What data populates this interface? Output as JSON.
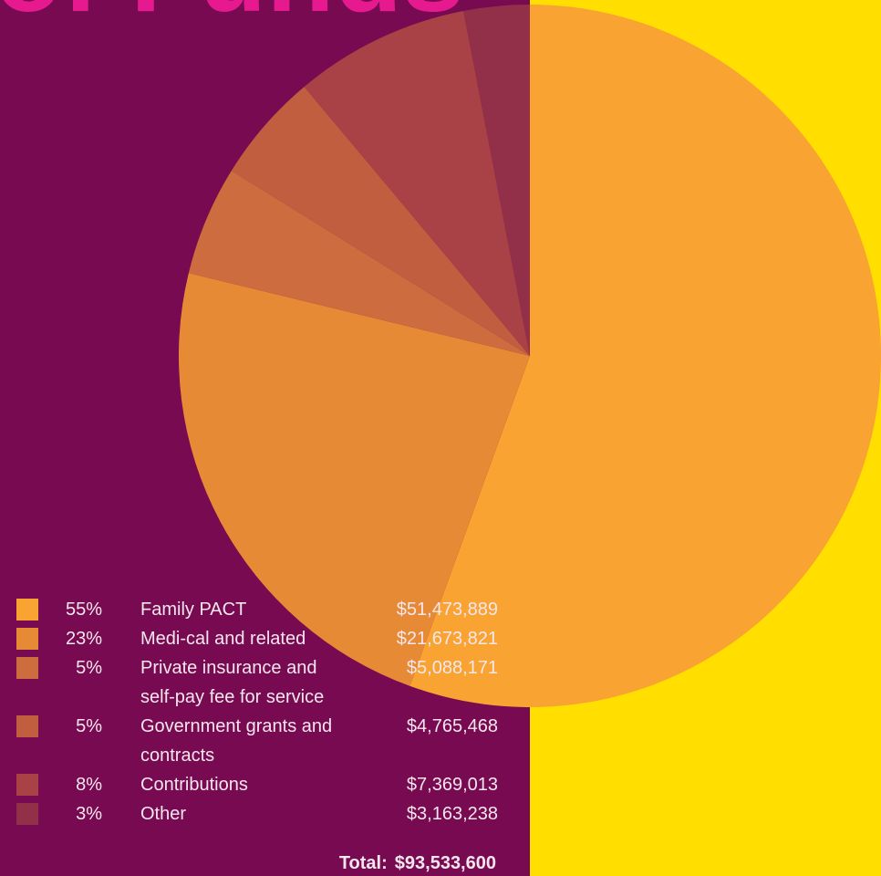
{
  "chart_data": {
    "type": "pie",
    "title": "of Funds",
    "categories": [
      "Family PACT",
      "Medi-cal and related",
      "Private insurance and self-pay fee for service",
      "Government grants and contracts",
      "Contributions",
      "Other"
    ],
    "values": [
      55,
      23,
      5,
      5,
      8,
      3
    ],
    "value_labels": [
      "55%",
      "23%",
      "5%",
      "5%",
      "8%",
      "3%"
    ],
    "amounts": [
      "$51,473,889",
      "$21,673,821",
      "$5,088,171",
      "$4,765,468",
      "$7,369,013",
      "$3,163,238"
    ],
    "colors": [
      "#f8a332",
      "#e78a36",
      "#cd6c3e",
      "#c15e40",
      "#a84246",
      "#933049"
    ],
    "total_label": "Total:",
    "total": "$93,533,600"
  }
}
